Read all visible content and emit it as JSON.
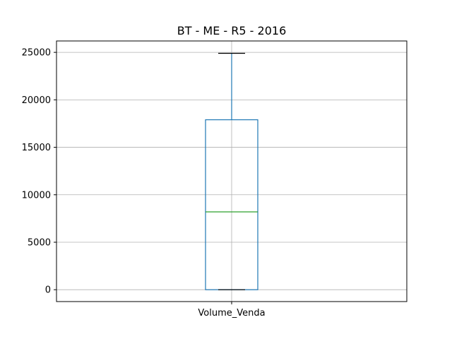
{
  "chart_data": {
    "type": "box",
    "title": "BT - ME - R5 - 2016",
    "xlabel": "",
    "ylabel": "",
    "categories": [
      "Volume_Venda"
    ],
    "series": [
      {
        "name": "Volume_Venda",
        "min": 0,
        "q1": 0,
        "median": 8200,
        "q3": 17900,
        "max": 24900
      }
    ],
    "ylim": [
      -1250,
      26200
    ],
    "yticks": [
      0,
      5000,
      10000,
      15000,
      20000,
      25000
    ],
    "ytick_labels": [
      "0",
      "5000",
      "10000",
      "15000",
      "20000",
      "25000"
    ],
    "grid": true,
    "colors": {
      "box": "#1f77b4",
      "whisker": "#1f77b4",
      "cap": "#000000",
      "median": "#2ca02c",
      "grid": "#b0b0b0"
    }
  }
}
